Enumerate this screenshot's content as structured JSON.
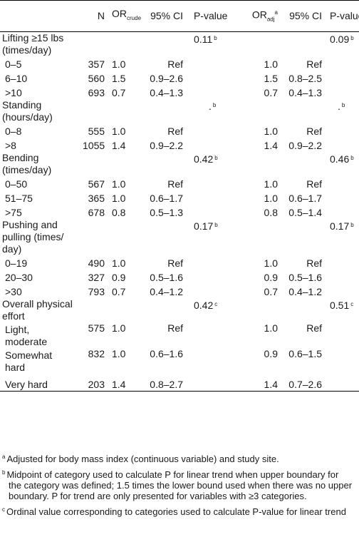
{
  "headers": {
    "n": "N",
    "or_crude_main": "OR",
    "or_crude_sub": "crude",
    "ci1": "95% CI",
    "pvalue1": "P-value",
    "or_adj_main": "OR",
    "or_adj_sub": "adj",
    "or_adj_sup": "a",
    "ci2": "95% CI",
    "pvalue2": "P-value"
  },
  "groups": [
    {
      "label": "Lifting ≥15 lbs (times/day)",
      "p1": "0.11",
      "p1_fn": "b",
      "p2": "0.09",
      "p2_fn": "b",
      "rows": [
        {
          "label": "0–5",
          "n": "357",
          "or": "1.0",
          "ci": "Ref",
          "ora": "1.0",
          "ci2": "Ref"
        },
        {
          "label": "6–10",
          "n": "560",
          "or": "1.5",
          "ci": "0.9–2.6",
          "ora": "1.5",
          "ci2": "0.8–2.5"
        },
        {
          "label": ">10",
          "n": "693",
          "or": "0.7",
          "ci": "0.4–1.3",
          "ora": "0.7",
          "ci2": "0.4–1.3"
        }
      ]
    },
    {
      "label": "Standing (hours/day)",
      "p1": ".",
      "p1_fn": "b",
      "p2": ".",
      "p2_fn": "b",
      "rows": [
        {
          "label": "0–8",
          "n": "555",
          "or": "1.0",
          "ci": "Ref",
          "ora": "1.0",
          "ci2": "Ref"
        },
        {
          "label": ">8",
          "n": "1055",
          "or": "1.4",
          "ci": "0.9–2.2",
          "ora": "1.4",
          "ci2": "0.9–2.2"
        }
      ]
    },
    {
      "label": "Bending (times/day)",
      "p1": "0.42",
      "p1_fn": "b",
      "p2": "0.46",
      "p2_fn": "b",
      "rows": [
        {
          "label": "0–50",
          "n": "567",
          "or": "1.0",
          "ci": "Ref",
          "ora": "1.0",
          "ci2": "Ref"
        },
        {
          "label": "51–75",
          "n": "365",
          "or": "1.0",
          "ci": "0.6–1.7",
          "ora": "1.0",
          "ci2": "0.6–1.7"
        },
        {
          "label": ">75",
          "n": "678",
          "or": "0.8",
          "ci": "0.5–1.3",
          "ora": "0.8",
          "ci2": "0.5–1.4"
        }
      ]
    },
    {
      "label": "Pushing and pulling (times/ day)",
      "p1": "0.17",
      "p1_fn": "b",
      "p2": "0.17",
      "p2_fn": "b",
      "rows": [
        {
          "label": "0–19",
          "n": "490",
          "or": "1.0",
          "ci": "Ref",
          "ora": "1.0",
          "ci2": "Ref"
        },
        {
          "label": "20–30",
          "n": "327",
          "or": "0.9",
          "ci": "0.5–1.6",
          "ora": "0.9",
          "ci2": "0.5–1.6"
        },
        {
          "label": ">30",
          "n": "793",
          "or": "0.7",
          "ci": "0.4–1.2",
          "ora": "0.7",
          "ci2": "0.4–1.2"
        }
      ]
    },
    {
      "label": "Overall physical effort",
      "p1": "0.42",
      "p1_fn": "c",
      "p2": "0.51",
      "p2_fn": "c",
      "rows": [
        {
          "label": "Light, moderate",
          "n": "575",
          "or": "1.0",
          "ci": "Ref",
          "ora": "1.0",
          "ci2": "Ref"
        },
        {
          "label": "Somewhat hard",
          "n": "832",
          "or": "1.0",
          "ci": "0.6–1.6",
          "ora": "0.9",
          "ci2": "0.6–1.5"
        },
        {
          "label": "Very hard",
          "n": "203",
          "or": "1.4",
          "ci": "0.8–2.7",
          "ora": "1.4",
          "ci2": "0.7–2.6"
        }
      ]
    }
  ],
  "footnotes": [
    {
      "mark": "a",
      "text": "Adjusted for body mass index (continuous variable) and study site."
    },
    {
      "mark": "b",
      "text": "Midpoint of category used to calculate P for linear trend when upper boundary for the category was defined; 1.5 times the lower bound used when there was no upper boundary. P for trend are only presented for variables with ≥3 categories."
    },
    {
      "mark": "c",
      "text": "Ordinal value corresponding to categories used to calculate P-value for linear trend"
    }
  ]
}
